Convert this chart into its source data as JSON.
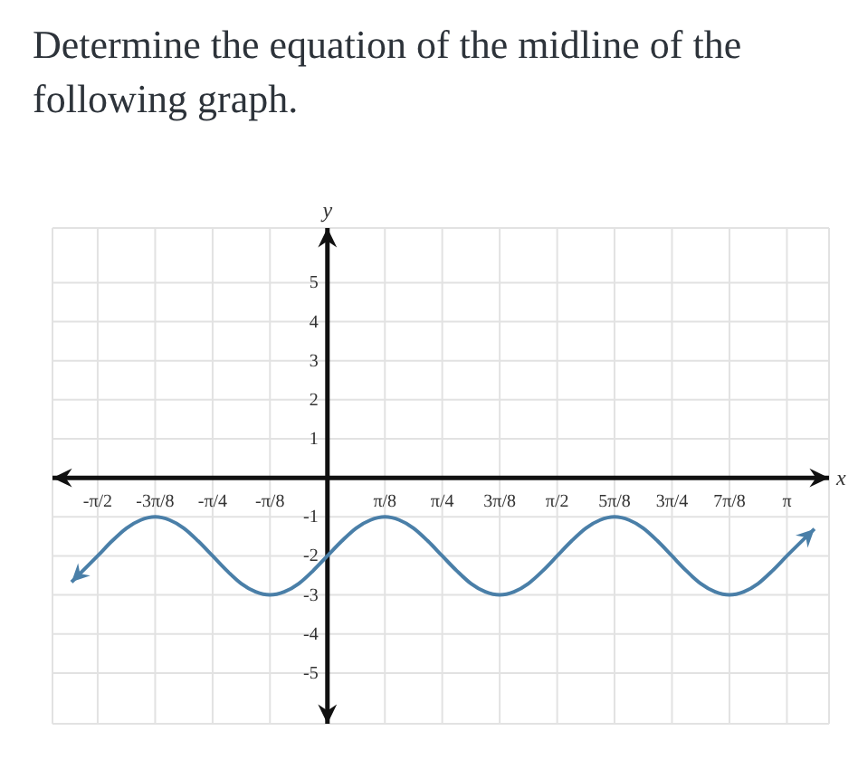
{
  "chart_data": {
    "type": "line",
    "title": "Determine the equation of the midline of the following graph.",
    "xlabel": "x",
    "ylabel": "y",
    "x": [
      -1.75,
      -1.571,
      -1.473,
      -1.374,
      -1.276,
      -1.178,
      -1.08,
      -0.982,
      -0.884,
      -0.785,
      -0.687,
      -0.589,
      -0.491,
      -0.393,
      -0.295,
      -0.196,
      -0.098,
      0,
      0.098,
      0.196,
      0.295,
      0.393,
      0.491,
      0.589,
      0.687,
      0.785,
      0.884,
      0.982,
      1.08,
      1.178,
      1.276,
      1.374,
      1.473,
      1.571,
      1.669,
      1.767,
      1.865,
      1.963,
      2.062,
      2.16,
      2.258,
      2.356,
      2.454,
      2.553,
      2.651,
      2.749,
      2.847,
      2.945,
      3.043,
      3.142,
      3.33
    ],
    "series": [
      {
        "color": "#4a7fa8",
        "values": [
          -2.67,
          -2,
          -1.62,
          -1.29,
          -1.08,
          -1,
          -1.08,
          -1.29,
          -1.62,
          -2,
          -2.38,
          -2.71,
          -2.92,
          -3,
          -2.92,
          -2.71,
          -2.38,
          -2,
          -1.62,
          -1.29,
          -1.08,
          -1,
          -1.08,
          -1.29,
          -1.62,
          -2,
          -2.38,
          -2.71,
          -2.92,
          -3,
          -2.92,
          -2.71,
          -2.38,
          -2,
          -1.62,
          -1.29,
          -1.08,
          -1,
          -1.08,
          -1.29,
          -1.62,
          -2,
          -2.38,
          -2.71,
          -2.92,
          -3,
          -2.92,
          -2.71,
          -2.38,
          -2,
          -1.31
        ]
      }
    ],
    "xlim": [
      -1.88,
      3.43
    ],
    "ylim": [
      -6.3,
      6.4
    ],
    "xticks": [
      {
        "value": -1.571,
        "label": "-π/2"
      },
      {
        "value": -1.178,
        "label": "-3π/8"
      },
      {
        "value": -0.785,
        "label": "-π/4"
      },
      {
        "value": -0.393,
        "label": "-π/8"
      },
      {
        "value": 0.393,
        "label": "π/8"
      },
      {
        "value": 0.785,
        "label": "π/4"
      },
      {
        "value": 1.178,
        "label": "3π/8"
      },
      {
        "value": 1.571,
        "label": "π/2"
      },
      {
        "value": 1.963,
        "label": "5π/8"
      },
      {
        "value": 2.356,
        "label": "3π/4"
      },
      {
        "value": 2.749,
        "label": "7π/8"
      },
      {
        "value": 3.142,
        "label": "π"
      }
    ],
    "yticks": [
      -5,
      -4,
      -3,
      -2,
      -1,
      1,
      2,
      3,
      4,
      5
    ],
    "grid": true,
    "marker": "none",
    "line_style": "solid"
  }
}
